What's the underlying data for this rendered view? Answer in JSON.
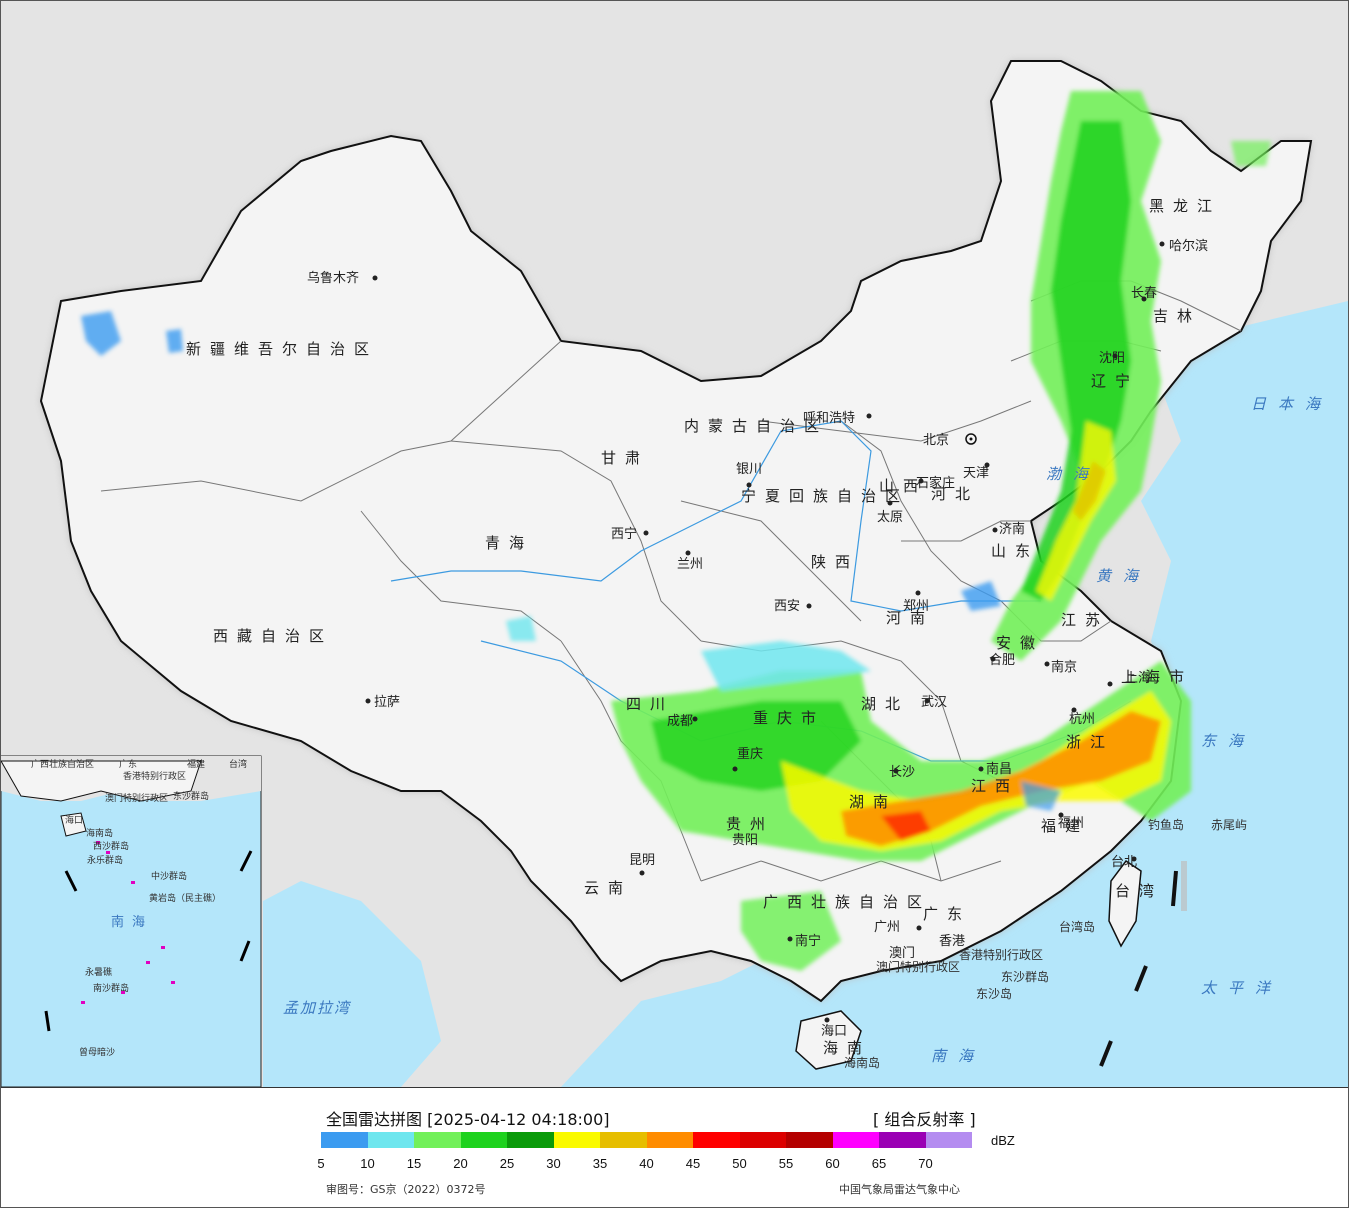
{
  "legend": {
    "title": "全国雷达拼图 [2025-04-12 04:18:00]",
    "product": "[ 组合反射率 ]",
    "unit": "dBZ",
    "ticks": [
      "5",
      "10",
      "15",
      "20",
      "25",
      "30",
      "35",
      "40",
      "45",
      "50",
      "55",
      "60",
      "65",
      "70"
    ],
    "colors": [
      "#3b9bf0",
      "#6ee6ee",
      "#72f05a",
      "#1ed21e",
      "#0a9a0a",
      "#fafa00",
      "#e6be00",
      "#ff8c00",
      "#ff0000",
      "#dc0000",
      "#b40000",
      "#ff00ff",
      "#9a00b4",
      "#b48cf0"
    ],
    "approval": "审图号：GS京（2022）0372号",
    "source": "中国气象局雷达气象中心"
  },
  "provinces": [
    "新疆维吾尔自治区",
    "西藏自治区",
    "青海",
    "甘肃",
    "内蒙古自治区",
    "黑龙江",
    "吉林",
    "辽宁",
    "河北",
    "山西",
    "陕西",
    "四川",
    "云南",
    "贵州",
    "广西壮族自治区",
    "广东",
    "湖南",
    "湖北",
    "江西",
    "福建",
    "浙江",
    "江苏",
    "安徽",
    "河南",
    "山东",
    "海南",
    "台湾",
    "重庆市",
    "上海市",
    "宁夏回族自治区"
  ],
  "cities": [
    "乌鲁木齐",
    "拉萨",
    "西宁",
    "兰州",
    "银川",
    "呼和浩特",
    "北京",
    "天津",
    "石家庄",
    "太原",
    "济南",
    "郑州",
    "西安",
    "成都",
    "重庆",
    "贵阳",
    "昆明",
    "南宁",
    "广州",
    "长沙",
    "武汉",
    "南昌",
    "合肥",
    "南京",
    "杭州",
    "上海",
    "福州",
    "台北",
    "海口",
    "哈尔滨",
    "长春",
    "沈阳",
    "澳门",
    "香港"
  ],
  "seas": [
    "日本海",
    "渤海",
    "黄海",
    "东海",
    "太平洋",
    "南海",
    "孟加拉湾"
  ],
  "islands": [
    "钓鱼岛",
    "赤尾屿",
    "台湾岛",
    "海南岛",
    "东沙群岛",
    "东沙岛",
    "香港特别行政区",
    "澳门特别行政区"
  ],
  "inset": {
    "labels": [
      "广西壮族自治区",
      "广东",
      "福建",
      "台湾",
      "香港特别行政区",
      "澳门特别行政区",
      "东沙群岛",
      "海口",
      "海南岛",
      "西沙群岛",
      "永乐群岛",
      "中沙群岛",
      "黄岩岛（民主礁）",
      "南海",
      "永暑礁",
      "南沙群岛",
      "曾母暗沙"
    ]
  },
  "colors": {
    "sea": "#b4e6fa",
    "foreign": "#e4e4e4",
    "land": "#f4f4f4",
    "border": "#111111",
    "halo": "#bdbdbd"
  }
}
